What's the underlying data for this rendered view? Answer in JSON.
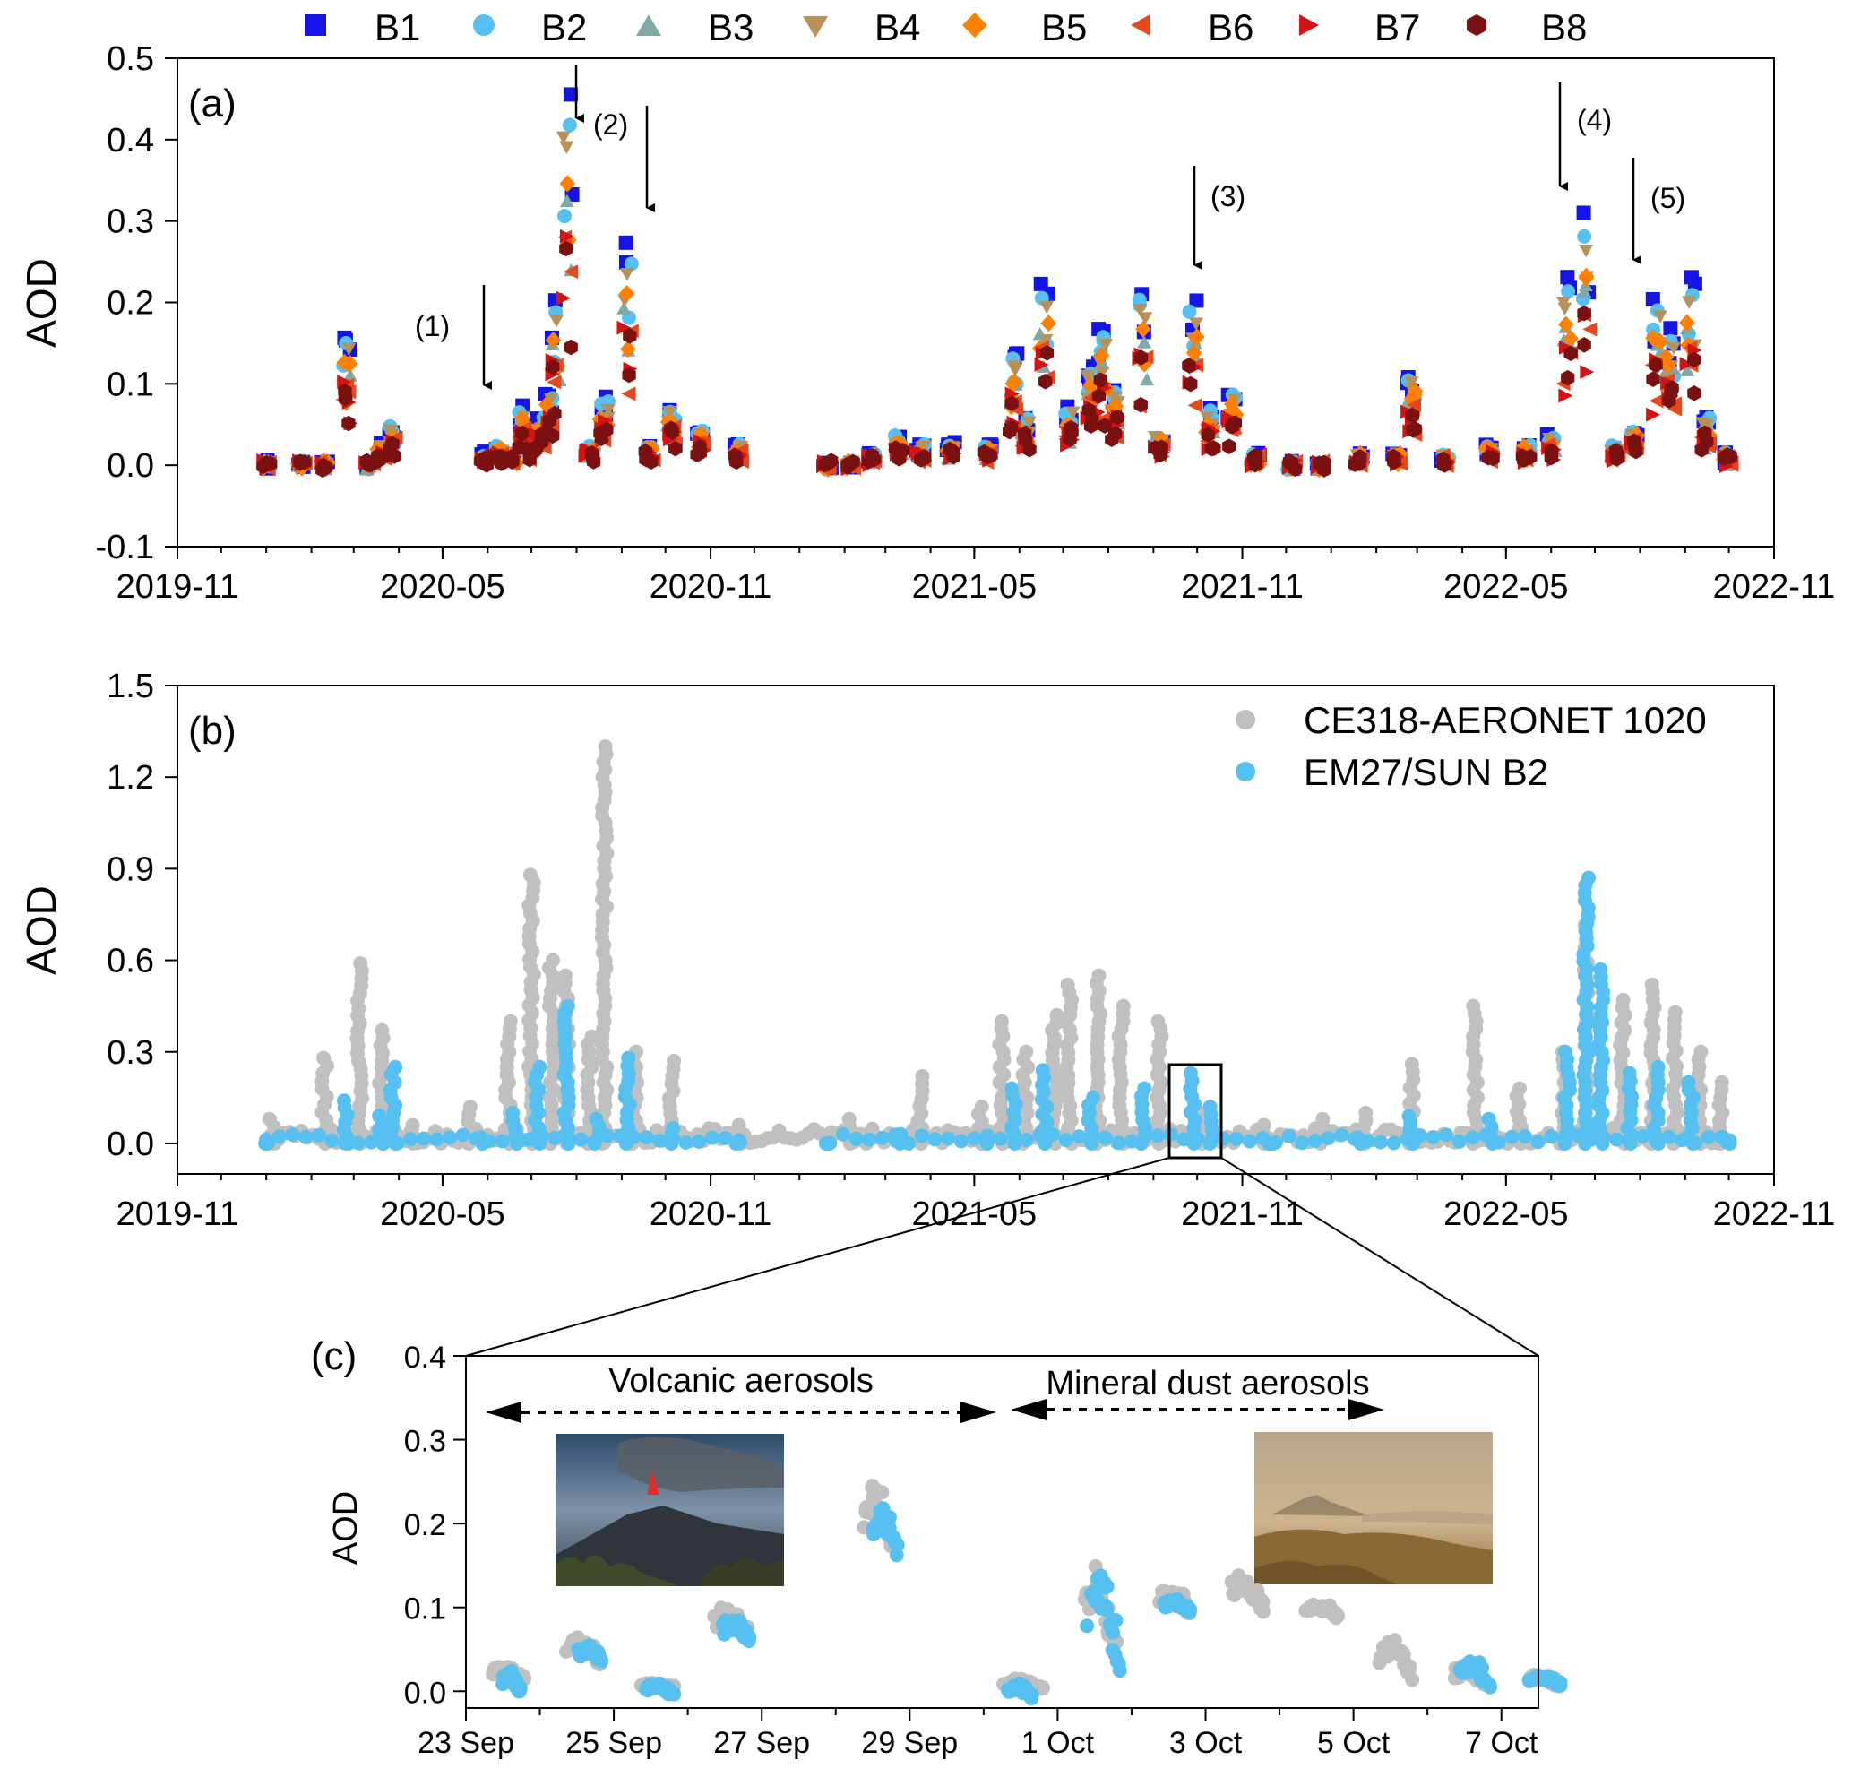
{
  "chart_data": [
    {
      "panel": "(a)",
      "type": "scatter",
      "ylabel": "AOD",
      "ylim": [
        -0.1,
        0.5
      ],
      "yticks": [
        "-0.1",
        "0.0",
        "0.1",
        "0.2",
        "0.3",
        "0.4",
        "0.5"
      ],
      "xlim": [
        "2019-11",
        "2022-11"
      ],
      "xticks": [
        "2019-11",
        "2020-05",
        "2020-11",
        "2021-05",
        "2021-11",
        "2022-05",
        "2022-11"
      ],
      "legend": "top",
      "series_names": [
        "B1",
        "B2",
        "B3",
        "B4",
        "B5",
        "B6",
        "B7",
        "B8"
      ],
      "colors": [
        "#1414e6",
        "#56c1f0",
        "#7fa8a8",
        "#b8905a",
        "#ff7f00",
        "#e8461b",
        "#d41414",
        "#7a1010"
      ],
      "events": [
        "2020-06-01",
        "2020-07-20",
        "2020-09-05",
        "2021-09-25",
        "2022-06-15",
        "2022-08-10"
      ],
      "base": [
        [
          "2020-01-01",
          0.0
        ],
        [
          "2020-01-25",
          0.0
        ],
        [
          "2020-02-10",
          0.0
        ],
        [
          "2020-02-25",
          0.14
        ],
        [
          "2020-03-12",
          0.0
        ],
        [
          "2020-03-20",
          0.02
        ],
        [
          "2020-03-27",
          0.04
        ],
        [
          "2020-05-30",
          0.01
        ],
        [
          "2020-06-08",
          0.02
        ],
        [
          "2020-06-18",
          0.01
        ],
        [
          "2020-06-25",
          0.06
        ],
        [
          "2020-07-01",
          0.03
        ],
        [
          "2020-07-07",
          0.05
        ],
        [
          "2020-07-13",
          0.08
        ],
        [
          "2020-07-18",
          0.18
        ],
        [
          "2020-07-26",
          0.4
        ],
        [
          "2020-08-10",
          0.02
        ],
        [
          "2020-08-20",
          0.07
        ],
        [
          "2020-09-05",
          0.24
        ],
        [
          "2020-09-20",
          0.02
        ],
        [
          "2020-10-05",
          0.06
        ],
        [
          "2020-10-25",
          0.04
        ],
        [
          "2020-11-20",
          0.02
        ],
        [
          "2021-01-20",
          0.0
        ],
        [
          "2021-02-05",
          0.0
        ],
        [
          "2021-02-20",
          0.01
        ],
        [
          "2021-03-10",
          0.03
        ],
        [
          "2021-03-25",
          0.02
        ],
        [
          "2021-04-15",
          0.02
        ],
        [
          "2021-05-10",
          0.02
        ],
        [
          "2021-05-28",
          0.12
        ],
        [
          "2021-06-05",
          0.05
        ],
        [
          "2021-06-18",
          0.2
        ],
        [
          "2021-07-05",
          0.06
        ],
        [
          "2021-07-20",
          0.11
        ],
        [
          "2021-07-28",
          0.15
        ],
        [
          "2021-08-05",
          0.08
        ],
        [
          "2021-08-25",
          0.19
        ],
        [
          "2021-09-05",
          0.03
        ],
        [
          "2021-09-28",
          0.18
        ],
        [
          "2021-10-10",
          0.06
        ],
        [
          "2021-10-25",
          0.08
        ],
        [
          "2021-11-10",
          0.01
        ],
        [
          "2021-12-05",
          0.0
        ],
        [
          "2021-12-25",
          0.0
        ],
        [
          "2022-01-20",
          0.01
        ],
        [
          "2022-02-15",
          0.01
        ],
        [
          "2022-02-25",
          0.1
        ],
        [
          "2022-03-20",
          0.01
        ],
        [
          "2022-04-20",
          0.02
        ],
        [
          "2022-05-15",
          0.02
        ],
        [
          "2022-06-01",
          0.03
        ],
        [
          "2022-06-12",
          0.2
        ],
        [
          "2022-06-25",
          0.27
        ],
        [
          "2022-07-15",
          0.02
        ],
        [
          "2022-07-28",
          0.04
        ],
        [
          "2022-08-12",
          0.18
        ],
        [
          "2022-08-22",
          0.15
        ],
        [
          "2022-09-05",
          0.2
        ],
        [
          "2022-09-15",
          0.05
        ],
        [
          "2022-09-30",
          0.01
        ]
      ],
      "band_factors": [
        1.13,
        1.05,
        0.82,
        1.0,
        0.87,
        0.7,
        0.7,
        0.67
      ],
      "annotations": [
        "(1)",
        "(2)",
        "(3)",
        "(4)",
        "(5)"
      ]
    },
    {
      "panel": "(b)",
      "type": "scatter",
      "ylabel": "AOD",
      "ylim": [
        -0.1,
        1.5
      ],
      "yticks": [
        "0.0",
        "0.3",
        "0.6",
        "0.9",
        "1.2",
        "1.5"
      ],
      "xlim": [
        "2019-11",
        "2022-11"
      ],
      "xticks": [
        "2019-11",
        "2020-05",
        "2020-11",
        "2021-05",
        "2021-11",
        "2022-05",
        "2022-11"
      ],
      "legend": "top-right",
      "series": [
        {
          "name": "CE318-AERONET 1020",
          "color": "#c0c0c0",
          "points": [
            [
              "2020-01-05",
              0.08
            ],
            [
              "2020-02-10",
              0.28
            ],
            [
              "2020-03-05",
              0.59
            ],
            [
              "2020-03-20",
              0.37
            ],
            [
              "2020-04-10",
              0.06
            ],
            [
              "2020-05-20",
              0.12
            ],
            [
              "2020-06-15",
              0.4
            ],
            [
              "2020-07-01",
              0.88
            ],
            [
              "2020-07-15",
              0.6
            ],
            [
              "2020-07-25",
              0.55
            ],
            [
              "2020-08-10",
              0.35
            ],
            [
              "2020-08-20",
              1.3
            ],
            [
              "2020-09-10",
              0.3
            ],
            [
              "2020-10-05",
              0.27
            ],
            [
              "2020-11-20",
              0.06
            ],
            [
              "2021-02-05",
              0.08
            ],
            [
              "2021-03-25",
              0.22
            ],
            [
              "2021-05-05",
              0.12
            ],
            [
              "2021-05-20",
              0.4
            ],
            [
              "2021-06-05",
              0.3
            ],
            [
              "2021-06-25",
              0.42
            ],
            [
              "2021-07-05",
              0.52
            ],
            [
              "2021-07-25",
              0.55
            ],
            [
              "2021-08-10",
              0.45
            ],
            [
              "2021-09-05",
              0.4
            ],
            [
              "2021-10-05",
              0.1
            ],
            [
              "2021-11-15",
              0.06
            ],
            [
              "2021-12-25",
              0.08
            ],
            [
              "2022-01-25",
              0.1
            ],
            [
              "2022-02-25",
              0.26
            ],
            [
              "2022-04-10",
              0.45
            ],
            [
              "2022-05-10",
              0.18
            ],
            [
              "2022-06-10",
              0.3
            ],
            [
              "2022-06-25",
              0.74
            ],
            [
              "2022-07-20",
              0.47
            ],
            [
              "2022-08-10",
              0.52
            ],
            [
              "2022-08-25",
              0.43
            ],
            [
              "2022-09-10",
              0.3
            ],
            [
              "2022-09-25",
              0.2
            ]
          ]
        },
        {
          "name": "EM27/SUN B2",
          "color": "#56c1f0",
          "points": [
            [
              "2020-01-01",
              0.0
            ],
            [
              "2020-02-25",
              0.14
            ],
            [
              "2020-03-20",
              0.09
            ],
            [
              "2020-03-28",
              0.25
            ],
            [
              "2020-05-28",
              0.02
            ],
            [
              "2020-06-20",
              0.1
            ],
            [
              "2020-07-05",
              0.25
            ],
            [
              "2020-07-25",
              0.45
            ],
            [
              "2020-08-15",
              0.08
            ],
            [
              "2020-09-05",
              0.28
            ],
            [
              "2020-10-05",
              0.05
            ],
            [
              "2020-11-20",
              0.01
            ],
            [
              "2021-01-20",
              0.0
            ],
            [
              "2021-03-10",
              0.03
            ],
            [
              "2021-05-10",
              0.02
            ],
            [
              "2021-05-28",
              0.18
            ],
            [
              "2021-06-18",
              0.24
            ],
            [
              "2021-07-20",
              0.15
            ],
            [
              "2021-08-25",
              0.18
            ],
            [
              "2021-09-28",
              0.23
            ],
            [
              "2021-10-10",
              0.12
            ],
            [
              "2021-11-20",
              0.0
            ],
            [
              "2022-01-20",
              0.02
            ],
            [
              "2022-02-25",
              0.09
            ],
            [
              "2022-04-20",
              0.08
            ],
            [
              "2022-06-12",
              0.3
            ],
            [
              "2022-06-25",
              0.87
            ],
            [
              "2022-07-05",
              0.57
            ],
            [
              "2022-07-25",
              0.23
            ],
            [
              "2022-08-12",
              0.25
            ],
            [
              "2022-09-05",
              0.2
            ],
            [
              "2022-09-30",
              0.01
            ]
          ]
        }
      ]
    },
    {
      "panel": "(c)",
      "type": "scatter",
      "ylabel": "AOD",
      "ylim": [
        -0.02,
        0.4
      ],
      "yticks": [
        "0.0",
        "0.1",
        "0.2",
        "0.3",
        "0.4"
      ],
      "xlim": [
        "2021-09-23",
        "2021-10-07"
      ],
      "xticks": [
        "23 Sep",
        "25 Sep",
        "27 Sep",
        "29 Sep",
        "1 Oct",
        "3 Oct",
        "5 Oct",
        "7 Oct"
      ],
      "series": [
        {
          "name": "CE318-AERONET 1020",
          "clusters": [
            [
              "2021-09-23 09:00",
              "2021-09-23 19:00",
              0.01,
              0.03
            ],
            [
              "2021-09-24 09:00",
              "2021-09-24 19:00",
              0.03,
              0.065
            ],
            [
              "2021-09-25 09:00",
              "2021-09-25 19:00",
              0.005,
              0.01
            ],
            [
              "2021-09-26 09:00",
              "2021-09-26 19:00",
              0.06,
              0.1
            ],
            [
              "2021-09-28 09:00",
              "2021-09-28 19:00",
              0.16,
              0.25
            ],
            [
              "2021-09-30 07:00",
              "2021-09-30 19:00",
              0.0,
              0.015
            ],
            [
              "2021-10-01 09:00",
              "2021-10-01 19:00",
              0.02,
              0.15
            ],
            [
              "2021-10-02 09:00",
              "2021-10-02 19:00",
              0.09,
              0.12
            ],
            [
              "2021-10-03 09:00",
              "2021-10-03 19:00",
              0.09,
              0.14
            ],
            [
              "2021-10-04 09:00",
              "2021-10-04 19:00",
              0.085,
              0.105
            ],
            [
              "2021-10-05 09:00",
              "2021-10-05 19:00",
              0.01,
              0.065
            ],
            [
              "2021-10-06 09:00",
              "2021-10-06 19:00",
              0.005,
              0.03
            ],
            [
              "2021-10-07 09:00",
              "2021-10-07 19:00",
              0.005,
              0.02
            ]
          ]
        },
        {
          "name": "EM27/SUN B2",
          "clusters": [
            [
              "2021-09-23 12:00",
              "2021-09-23 18:00",
              -0.005,
              0.025
            ],
            [
              "2021-09-24 13:00",
              "2021-09-24 20:00",
              0.03,
              0.055
            ],
            [
              "2021-09-25 10:00",
              "2021-09-25 19:00",
              -0.005,
              0.01
            ],
            [
              "2021-09-26 11:00",
              "2021-09-26 20:00",
              0.055,
              0.085
            ],
            [
              "2021-09-28 12:00",
              "2021-09-28 20:00",
              0.155,
              0.22
            ],
            [
              "2021-09-30 08:00",
              "2021-09-30 16:00",
              -0.01,
              0.01
            ],
            [
              "2021-10-01 10:00",
              "2021-10-01 20:00",
              0.01,
              0.145
            ],
            [
              "2021-10-02 11:00",
              "2021-10-02 19:00",
              0.09,
              0.11
            ],
            [
              "2021-10-06 11:00",
              "2021-10-06 20:00",
              0.0,
              0.04
            ],
            [
              "2021-10-07 09:00",
              "2021-10-07 19:00",
              0.005,
              0.02
            ]
          ]
        }
      ],
      "annotations": [
        "Volcanic aerosols",
        "Mineral dust aerosols"
      ]
    }
  ]
}
